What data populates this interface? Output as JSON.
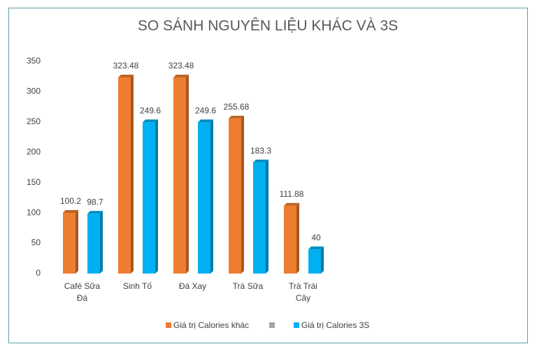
{
  "chart_data": {
    "type": "bar3d",
    "title": "SO SÁNH NGUYÊN LIỆU KHÁC VÀ 3S",
    "categories": [
      "Café Sữa Đá",
      "Sinh Tố",
      "Đá Xay",
      "Trà Sữa",
      "Trà Trái Cây"
    ],
    "series": [
      {
        "name": "Giá trị Calories khác",
        "color": "#ED7D31",
        "values": [
          100.2,
          323.48,
          323.48,
          255.68,
          111.88
        ]
      },
      {
        "name": "Giá trị Calories 3S",
        "color": "#00B0F0",
        "values": [
          98.7,
          249.6,
          249.6,
          183.3,
          40
        ]
      }
    ],
    "ylim": [
      0,
      350
    ],
    "yticks": [
      0,
      50,
      100,
      150,
      200,
      250,
      300,
      350
    ],
    "grid": false
  }
}
